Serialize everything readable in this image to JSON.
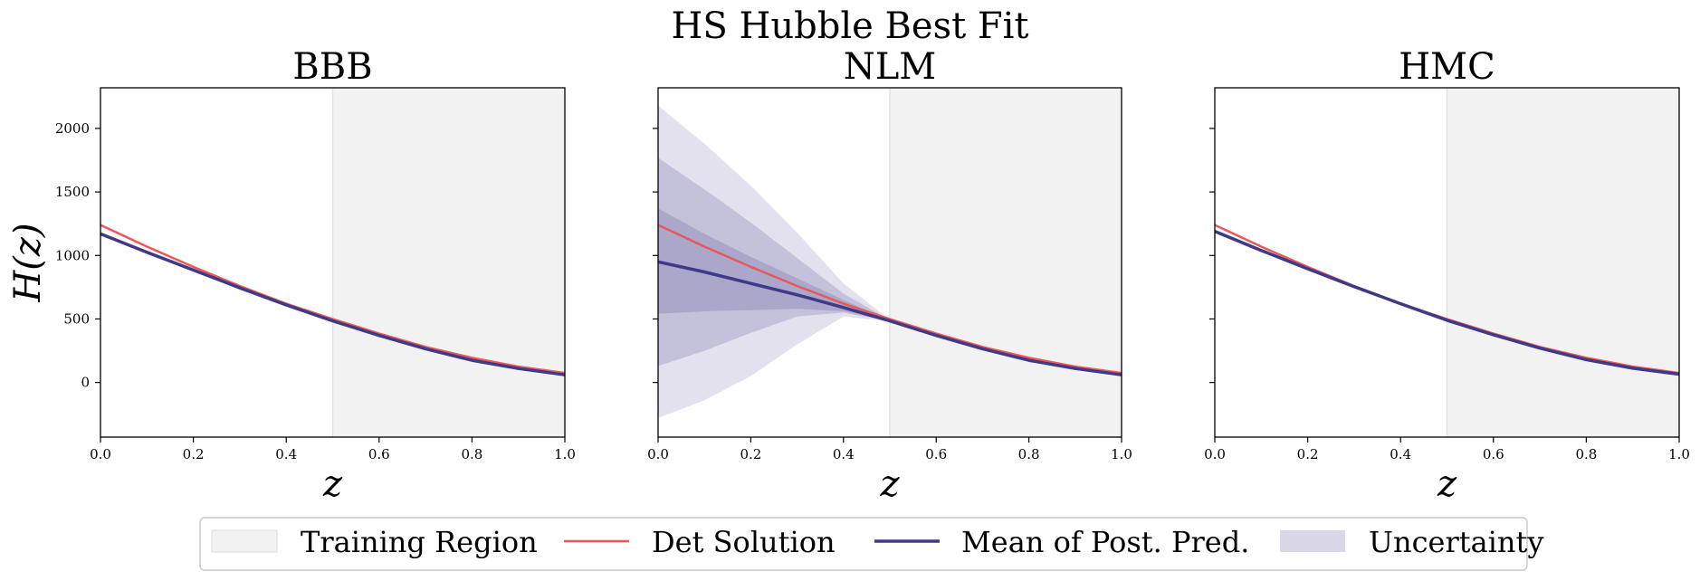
{
  "figure": {
    "title": "HS Hubble Best Fit"
  },
  "colors": {
    "training_region": "#f2f2f2",
    "det_solution": "#e8585a",
    "mean_post_pred": "#3f3a88",
    "uncertainty": "#d9d7e8",
    "uncertainty_inner": "#b9b5d4",
    "uncertainty_core": "#a29dc6"
  },
  "legend": {
    "placement": "bottom-center",
    "items": [
      {
        "key": "training",
        "label": "Training Region"
      },
      {
        "key": "det",
        "label": "Det Solution"
      },
      {
        "key": "mean",
        "label": "Mean of Post. Pred."
      },
      {
        "key": "unc",
        "label": "Uncertainty"
      }
    ]
  },
  "chart_data": [
    {
      "type": "line",
      "title": "BBB",
      "xlabel": "z",
      "ylabel": "H(z)",
      "xlim": [
        0.0,
        1.0
      ],
      "ylim": [
        -430,
        2320
      ],
      "xticks": [
        "0.0",
        "0.2",
        "0.4",
        "0.6",
        "0.8",
        "1.0"
      ],
      "yticks": [
        "0",
        "500",
        "1000",
        "1500",
        "2000"
      ],
      "training_region": [
        0.5,
        1.0
      ],
      "x": [
        0.0,
        0.1,
        0.2,
        0.3,
        0.4,
        0.5,
        0.6,
        0.7,
        0.8,
        0.9,
        1.0
      ],
      "series": [
        {
          "name": "Det Solution",
          "values": [
            1240,
            1070,
            910,
            760,
            620,
            500,
            385,
            280,
            195,
            125,
            75
          ]
        },
        {
          "name": "Mean of Post. Pred.",
          "values": [
            1170,
            1025,
            885,
            745,
            610,
            485,
            370,
            265,
            175,
            110,
            60
          ]
        }
      ],
      "bands": []
    },
    {
      "type": "line",
      "title": "NLM",
      "xlabel": "z",
      "ylabel": "",
      "xlim": [
        0.0,
        1.0
      ],
      "ylim": [
        -430,
        2320
      ],
      "xticks": [
        "0.0",
        "0.2",
        "0.4",
        "0.6",
        "0.8",
        "1.0"
      ],
      "yticks": [
        "0",
        "500",
        "1000",
        "1500",
        "2000"
      ],
      "training_region": [
        0.5,
        1.0
      ],
      "x": [
        0.0,
        0.1,
        0.2,
        0.3,
        0.4,
        0.5,
        0.6,
        0.7,
        0.8,
        0.9,
        1.0
      ],
      "series": [
        {
          "name": "Det Solution",
          "values": [
            1240,
            1070,
            910,
            760,
            620,
            500,
            385,
            280,
            195,
            125,
            75
          ]
        },
        {
          "name": "Mean of Post. Pred.",
          "values": [
            950,
            870,
            780,
            690,
            590,
            485,
            370,
            265,
            175,
            110,
            60
          ]
        }
      ],
      "bands": [
        {
          "name": "outer",
          "upper": [
            2180,
            1880,
            1550,
            1180,
            780,
            495,
            375,
            270,
            180,
            113,
            63
          ],
          "lower": [
            -280,
            -140,
            50,
            300,
            520,
            480,
            365,
            260,
            170,
            107,
            57
          ]
        },
        {
          "name": "inner",
          "upper": [
            1770,
            1520,
            1260,
            980,
            700,
            492,
            373,
            268,
            178,
            112,
            62
          ],
          "lower": [
            130,
            250,
            390,
            520,
            550,
            482,
            367,
            262,
            172,
            108,
            58
          ]
        },
        {
          "name": "core",
          "upper": [
            1370,
            1170,
            990,
            820,
            650,
            489,
            372,
            267,
            177,
            111,
            61
          ],
          "lower": [
            540,
            560,
            570,
            580,
            560,
            483,
            368,
            263,
            173,
            109,
            59
          ]
        }
      ]
    },
    {
      "type": "line",
      "title": "HMC",
      "xlabel": "z",
      "ylabel": "",
      "xlim": [
        0.0,
        1.0
      ],
      "ylim": [
        -430,
        2320
      ],
      "xticks": [
        "0.0",
        "0.2",
        "0.4",
        "0.6",
        "0.8",
        "1.0"
      ],
      "yticks": [
        "0",
        "500",
        "1000",
        "1500",
        "2000"
      ],
      "training_region": [
        0.5,
        1.0
      ],
      "x": [
        0.0,
        0.1,
        0.2,
        0.3,
        0.4,
        0.5,
        0.6,
        0.7,
        0.8,
        0.9,
        1.0
      ],
      "series": [
        {
          "name": "Det Solution",
          "values": [
            1240,
            1070,
            910,
            760,
            620,
            500,
            385,
            280,
            195,
            125,
            75
          ]
        },
        {
          "name": "Mean of Post. Pred.",
          "values": [
            1190,
            1040,
            895,
            755,
            620,
            490,
            375,
            270,
            180,
            112,
            65
          ]
        }
      ],
      "bands": []
    }
  ]
}
